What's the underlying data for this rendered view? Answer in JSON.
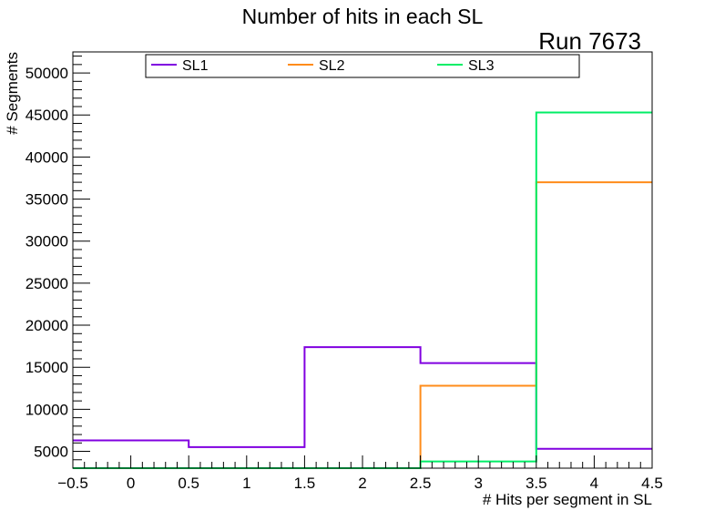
{
  "chart_data": {
    "type": "histogram",
    "title": "Number of hits in each SL",
    "annotation": "Run 7673",
    "xlabel": "# Hits per segment in SL",
    "ylabel": "# Segments",
    "xlim": [
      -0.5,
      4.5
    ],
    "ylim": [
      3000,
      52500
    ],
    "bin_edges": [
      -0.5,
      0.5,
      1.5,
      2.5,
      3.5,
      4.5
    ],
    "x_ticks": [
      "−0.5",
      "0",
      "0.5",
      "1",
      "1.5",
      "2",
      "2.5",
      "3",
      "3.5",
      "4",
      "4.5"
    ],
    "x_tick_values": [
      -0.5,
      0,
      0.5,
      1,
      1.5,
      2,
      2.5,
      3,
      3.5,
      4,
      4.5
    ],
    "y_ticks": [
      "5000",
      "10000",
      "15000",
      "20000",
      "25000",
      "30000",
      "35000",
      "40000",
      "45000",
      "50000"
    ],
    "y_tick_values": [
      5000,
      10000,
      15000,
      20000,
      25000,
      30000,
      35000,
      40000,
      45000,
      50000
    ],
    "series": [
      {
        "name": "SL1",
        "color": "#8000e0",
        "values": [
          6300,
          5500,
          17400,
          15500,
          5300
        ]
      },
      {
        "name": "SL2",
        "color": "#ff8c1a",
        "values": [
          3000,
          3000,
          3000,
          12800,
          37000
        ]
      },
      {
        "name": "SL3",
        "color": "#00ee66",
        "values": [
          3000,
          3000,
          3000,
          3800,
          45300
        ]
      }
    ],
    "legend_position": "top"
  }
}
